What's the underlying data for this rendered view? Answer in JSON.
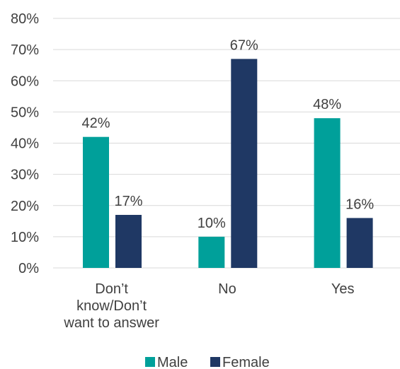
{
  "chart_data": {
    "type": "bar",
    "categories": [
      [
        "Don’t",
        "know/Don’t",
        "want to answer"
      ],
      [
        "No"
      ],
      [
        "Yes"
      ]
    ],
    "series": [
      {
        "name": "Male",
        "values": [
          42,
          10,
          48
        ],
        "labels": [
          "42%",
          "10%",
          "48%"
        ],
        "color": "#00a09a"
      },
      {
        "name": "Female",
        "values": [
          17,
          67,
          16
        ],
        "labels": [
          "17%",
          "67%",
          "16%"
        ],
        "color": "#1f3864"
      }
    ],
    "y_ticks": [
      "0%",
      "10%",
      "20%",
      "30%",
      "40%",
      "50%",
      "60%",
      "70%",
      "80%"
    ],
    "ylim": [
      0,
      80
    ],
    "grid": true,
    "legend_position": "bottom"
  }
}
